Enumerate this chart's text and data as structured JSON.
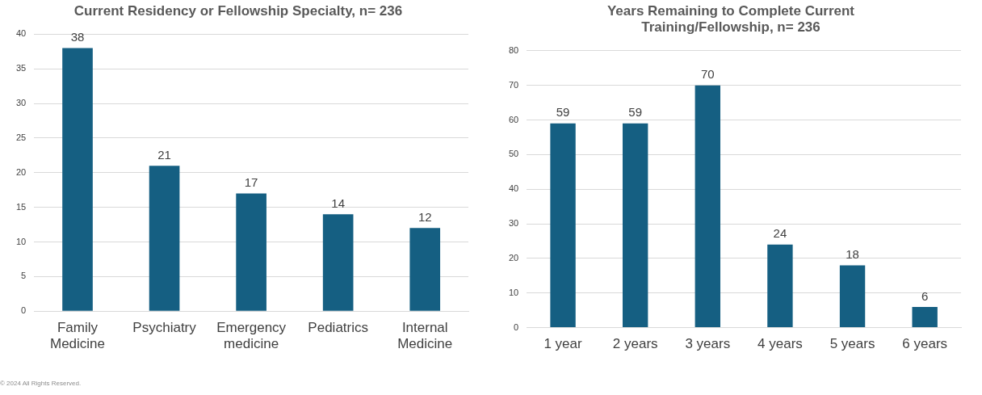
{
  "chart_data": [
    {
      "type": "bar",
      "title": "Current Residency or Fellowship Specialty, n= 236",
      "categories": [
        "Family Medicine",
        "Psychiatry",
        "Emergency medicine",
        "Pediatrics",
        "Internal Medicine"
      ],
      "values": [
        38,
        21,
        17,
        14,
        12
      ],
      "color": "#155f82",
      "ylim": [
        0,
        40
      ],
      "yticks": [
        0,
        5,
        10,
        15,
        20,
        25,
        30,
        35,
        40
      ],
      "grid": "y",
      "data_labels": true,
      "annotations": [
        "© 2024 All Rights Reserved."
      ]
    },
    {
      "type": "bar",
      "title": "Years Remaining to Complete Current Training/Fellowship, n= 236",
      "categories": [
        "1 year",
        "2 years",
        "3 years",
        "4 years",
        "5 years",
        "6 years"
      ],
      "values": [
        59,
        59,
        70,
        24,
        18,
        6
      ],
      "color": "#155f82",
      "ylim": [
        0,
        80
      ],
      "yticks": [
        0,
        10,
        20,
        30,
        40,
        50,
        60,
        70,
        80
      ],
      "grid": "y",
      "data_labels": true
    }
  ]
}
